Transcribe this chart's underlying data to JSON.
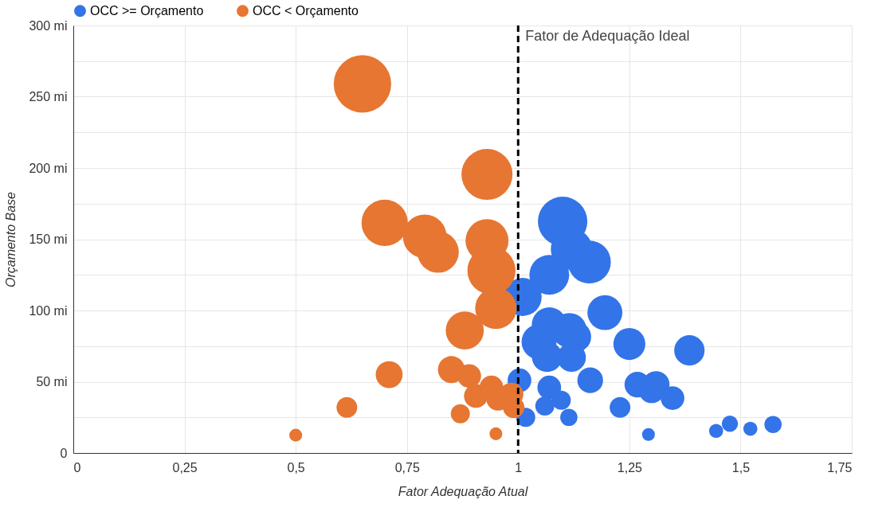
{
  "chart_data": {
    "type": "bubble",
    "xlabel": "Fator Adequação Atual",
    "ylabel": "Orçamento Base",
    "xlim": [
      0,
      1.75
    ],
    "xticks": [
      0,
      {
        "value": 0.25,
        "label": "0,25"
      },
      {
        "value": 0.5,
        "label": "0,5"
      },
      {
        "value": 0.75,
        "label": "0,75"
      },
      1,
      {
        "value": 1.25,
        "label": "1,25"
      },
      {
        "value": 1.5,
        "label": "1,5"
      },
      {
        "value": 1.75,
        "label": "1,75"
      }
    ],
    "ylim": [
      0,
      300
    ],
    "yticks": [
      0,
      {
        "value": 25,
        "label": null
      },
      {
        "value": 50,
        "label": "50 mi"
      },
      {
        "value": 75,
        "label": null
      },
      {
        "value": 100,
        "label": "100 mi"
      },
      {
        "value": 125,
        "label": null
      },
      {
        "value": 150,
        "label": "150 mi"
      },
      {
        "value": 175,
        "label": null
      },
      {
        "value": 200,
        "label": "200 mi"
      },
      {
        "value": 225,
        "label": null
      },
      {
        "value": 250,
        "label": "250 mi"
      },
      {
        "value": 275,
        "label": null
      },
      {
        "value": 300,
        "label": "300 mi"
      }
    ],
    "grid": true,
    "legend": "top",
    "marker": "circle",
    "ref_lines": [
      {
        "axis": "x",
        "value": 1,
        "label": "Fator de Adequação Ideal",
        "color": "#000000",
        "line_style": "dashed"
      }
    ],
    "series": [
      {
        "name": "OCC >= Orçamento",
        "color": "#3374e8",
        "x": [
          1.1,
          1.12,
          1.16,
          1.07,
          1.01,
          1.195,
          1.07,
          1.115,
          1.047,
          1.13,
          1.065,
          1.12,
          1.25,
          1.385,
          1.003,
          1.162,
          1.07,
          1.097,
          1.06,
          1.017,
          1.114,
          1.268,
          1.31,
          1.3,
          1.347,
          1.229,
          1.293,
          1.445,
          1.476,
          1.522,
          1.573
        ],
        "values": [
          162.5,
          143,
          134,
          125,
          109.5,
          98.5,
          90,
          86,
          78,
          81.5,
          67.5,
          67,
          76.5,
          72,
          51,
          51,
          46,
          37,
          33,
          25,
          25,
          48,
          48,
          44,
          38.5,
          32,
          13,
          15.5,
          20.5,
          17,
          20
        ],
        "sizes": [
          0.74,
          0.52,
          0.56,
          0.48,
          0.44,
          0.37,
          0.37,
          0.37,
          0.37,
          0.28,
          0.28,
          0.25,
          0.31,
          0.28,
          0.17,
          0.2,
          0.17,
          0.11,
          0.11,
          0.11,
          0.09,
          0.2,
          0.22,
          0.2,
          0.17,
          0.13,
          0.05,
          0.06,
          0.08,
          0.06,
          0.09
        ]
      },
      {
        "name": "OCC < Orçamento",
        "color": "#e67632",
        "x": [
          0.65,
          0.93,
          0.7,
          0.79,
          0.82,
          0.93,
          0.94,
          0.95,
          0.88,
          0.71,
          0.85,
          0.89,
          0.905,
          0.94,
          0.955,
          0.985,
          0.99,
          0.615,
          0.87,
          0.5,
          0.95
        ],
        "values": [
          259,
          195.5,
          161.5,
          152,
          141,
          149,
          128,
          101.5,
          86,
          55,
          58.5,
          54,
          40,
          46,
          38,
          41,
          32,
          32,
          27.5,
          12.5,
          13.5
        ],
        "sizes": [
          1,
          0.79,
          0.65,
          0.58,
          0.52,
          0.56,
          0.7,
          0.52,
          0.44,
          0.22,
          0.22,
          0.17,
          0.17,
          0.17,
          0.17,
          0.17,
          0.14,
          0.13,
          0.11,
          0.05,
          0.05
        ]
      }
    ]
  }
}
